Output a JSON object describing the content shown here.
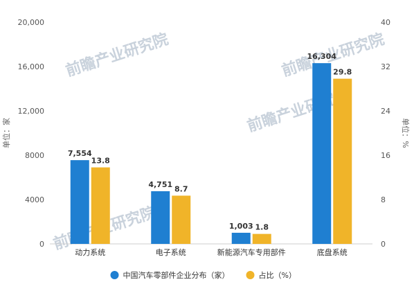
{
  "chart_data": {
    "type": "bar",
    "categories": [
      "动力系统",
      "电子系统",
      "新能源汽车专用部件",
      "底盘系统"
    ],
    "series": [
      {
        "name": "中国汽车零部件企业分布（家）",
        "values": [
          7554,
          4751,
          1003,
          16304
        ],
        "labels": [
          "7,554",
          "4,751",
          "1,003",
          "16,304"
        ],
        "axis": "left",
        "color": "#1f7fd1"
      },
      {
        "name": "占比（%）",
        "values": [
          13.8,
          8.7,
          1.8,
          29.8
        ],
        "labels": [
          "13.8",
          "8.7",
          "1.8",
          "29.8"
        ],
        "axis": "right",
        "color": "#f0b429"
      }
    ],
    "ylabel_left": "单位：家",
    "ylabel_right": "单位：%",
    "ylim_left": [
      0,
      20000
    ],
    "ylim_right": [
      0,
      40
    ],
    "yticks_left": [
      "0",
      "4000",
      "8000",
      "12,000",
      "16,000",
      "20,000"
    ],
    "yticks_right": [
      "0",
      "8",
      "16",
      "24",
      "32",
      "40"
    ],
    "grid": false,
    "legend_position": "bottom-center"
  },
  "watermark": {
    "text": "前瞻产业研究院",
    "color": "#c9d2dc"
  }
}
